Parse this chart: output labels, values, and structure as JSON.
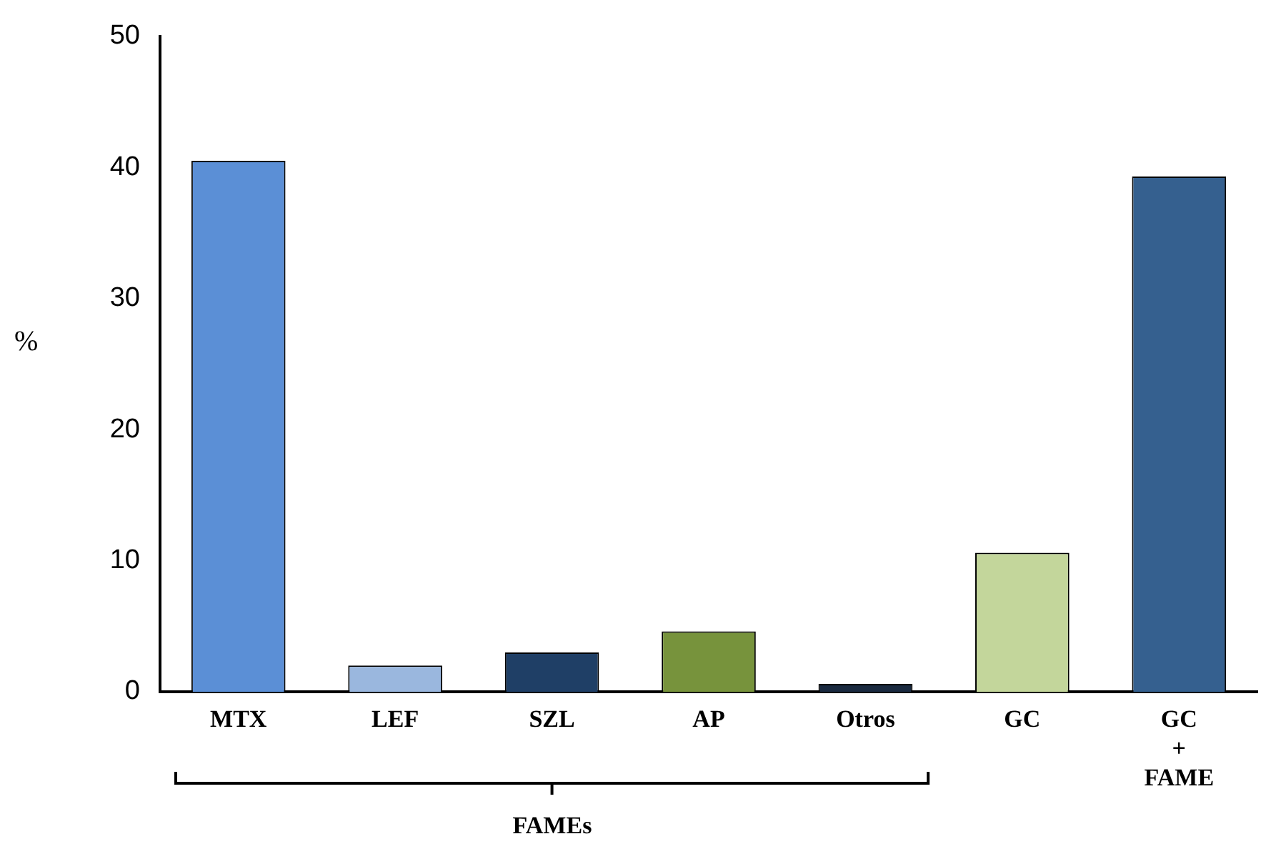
{
  "chart_data": {
    "type": "bar",
    "ylabel": "%",
    "categories": [
      "MTX",
      "LEF",
      "SZL",
      "AP",
      "Otros",
      "GC",
      "GC\n+\nFAME"
    ],
    "values": [
      40.5,
      2.0,
      3.0,
      4.6,
      0.6,
      10.6,
      39.3
    ],
    "colors": [
      "#5b8fd6",
      "#9ab7de",
      "#1f3f66",
      "#77933c",
      "#1a2a40",
      "#c3d69b",
      "#35608f"
    ],
    "ylim": [
      0,
      50
    ],
    "yticks": [
      0,
      10,
      20,
      30,
      40,
      50
    ],
    "grid": false,
    "legend": false,
    "annotations": [
      "FAMEs"
    ]
  }
}
